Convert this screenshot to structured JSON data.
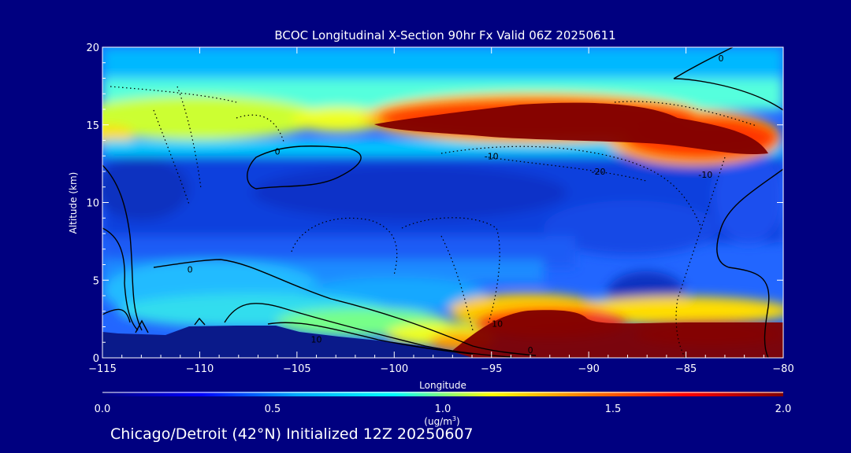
{
  "footer": "Chicago/Detroit (42°N) Initialized 12Z 20250607",
  "chart_data": {
    "type": "heatmap",
    "title": "BCOC Longitudinal X-Section 90hr  Fx Valid 06Z 20250611",
    "xlabel": "Longitude",
    "ylabel": "Altitude (km)",
    "xlim": [
      -115,
      -80
    ],
    "ylim": [
      0,
      20
    ],
    "x_ticks": [
      "-115",
      "-110",
      "-105",
      "-100",
      "-95",
      "-90",
      "-85",
      "-80"
    ],
    "y_ticks": [
      "0",
      "5",
      "10",
      "15",
      "20"
    ],
    "colorbar": {
      "label": "(ug/m",
      "label_superscript": "3",
      "label_suffix": ")",
      "range": [
        0.0,
        2.0
      ],
      "tick_labels": [
        "0.0",
        "0.5",
        "1.0",
        "1.5",
        "2.0"
      ],
      "colors": [
        "#000080",
        "#0000ff",
        "#00aaff",
        "#00ffff",
        "#ffff00",
        "#ff7700",
        "#ff0000",
        "#800000"
      ]
    },
    "contour_labels": [
      {
        "text": "0",
        "lon": -83.2,
        "alt": 19.3
      },
      {
        "text": "0",
        "lon": -106.0,
        "alt": 13.3
      },
      {
        "text": "-10",
        "lon": -95.0,
        "alt": 13.0
      },
      {
        "text": "-20",
        "lon": -89.5,
        "alt": 12.0
      },
      {
        "text": "-10",
        "lon": -84.0,
        "alt": 11.8
      },
      {
        "text": "0",
        "lon": -110.5,
        "alt": 5.7
      },
      {
        "text": "10",
        "lon": -94.7,
        "alt": 2.2
      },
      {
        "text": "10",
        "lon": -104.0,
        "alt": 1.2
      },
      {
        "text": "0",
        "lon": -93.0,
        "alt": 0.5
      }
    ]
  }
}
